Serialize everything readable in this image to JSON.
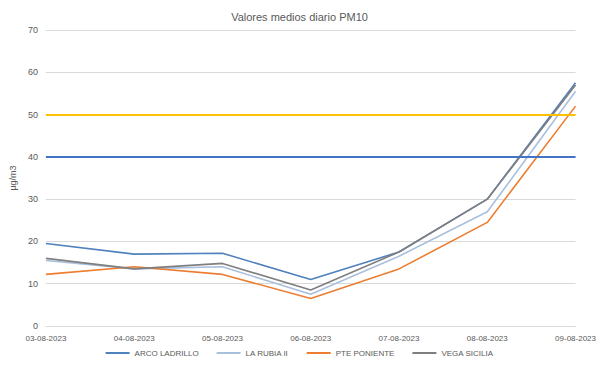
{
  "chart_data": {
    "type": "line",
    "title": "Valores medios diario PM10",
    "y_label": "µg/m3",
    "categories": [
      "03-08-2023",
      "04-08-2023",
      "05-08-2023",
      "06-08-2023",
      "07-08-2023",
      "08-08-2023",
      "09-08-2023"
    ],
    "series": [
      {
        "name": "ARCO LADRILLO",
        "color": "#4f81bd",
        "values": [
          19.5,
          17,
          17.2,
          11,
          17.5,
          30,
          57.5
        ]
      },
      {
        "name": "LA RUBIA II",
        "color": "#a9bfde",
        "values": [
          15.5,
          13.5,
          14,
          7.5,
          16.5,
          27,
          55.5
        ]
      },
      {
        "name": "PTE PONIENTE",
        "color": "#ed7d31",
        "values": [
          12.2,
          14,
          12.2,
          6.5,
          13.5,
          24.5,
          52
        ]
      },
      {
        "name": "VEGA SICILIA",
        "color": "#7f7f7f",
        "values": [
          16,
          13.5,
          14.8,
          8.5,
          17.5,
          30,
          57
        ]
      }
    ],
    "hlines": [
      {
        "value": 50,
        "color": "#ffc000"
      },
      {
        "value": 40,
        "color": "#4472c4"
      }
    ],
    "ylim": [
      0,
      70
    ],
    "yticks": [
      0,
      10,
      20,
      30,
      40,
      50,
      60,
      70
    ],
    "grid": true,
    "legend": "bottom"
  }
}
